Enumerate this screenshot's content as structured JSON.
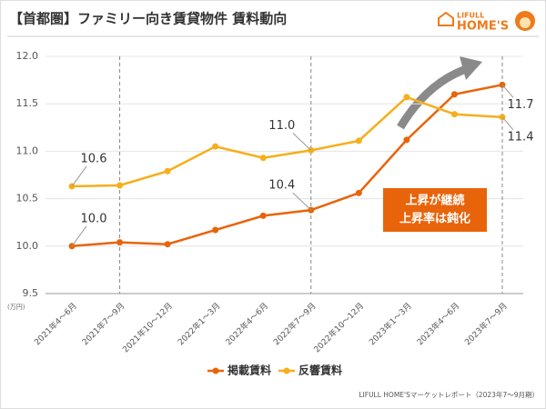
{
  "chart_data": {
    "type": "line",
    "title": "【首都圏】ファミリー向き賃貸物件 賃料動向",
    "logo_small": "LIFULL",
    "logo_large": "HOME'S",
    "y_unit": "(万円)",
    "source": "LIFULL HOME'Sマーケットレポート（2023年7〜9月期）",
    "annotation": [
      "上昇が継続",
      "上昇率は鈍化"
    ],
    "categories": [
      "2021年4〜6月",
      "2021年7〜9月",
      "2021年10〜12月",
      "2022年1〜3月",
      "2022年4〜6月",
      "2022年7〜9月",
      "2022年10〜12月",
      "2023年1〜3月",
      "2023年4〜6月",
      "2023年7〜9月"
    ],
    "series": [
      {
        "name": "掲載賃料",
        "color": "#e8640a",
        "values": [
          10.0,
          10.04,
          10.02,
          10.17,
          10.32,
          10.38,
          10.56,
          11.12,
          11.6,
          11.7
        ],
        "value_labels": [
          "10.0",
          null,
          null,
          null,
          null,
          "10.4",
          null,
          null,
          null,
          "11.7"
        ]
      },
      {
        "name": "反響賃料",
        "color": "#f7ae1a",
        "values": [
          10.63,
          10.64,
          10.79,
          11.05,
          10.93,
          11.01,
          11.11,
          11.57,
          11.39,
          11.36
        ],
        "value_labels": [
          "10.6",
          null,
          null,
          null,
          null,
          "11.0",
          null,
          null,
          null,
          "11.4"
        ]
      }
    ],
    "ylim": [
      9.5,
      12.0
    ],
    "yticks": [
      9.5,
      {
        "value": 10,
        "label": "10.0"
      },
      10.5,
      {
        "value": 11,
        "label": "11.0"
      },
      11.5,
      {
        "value": 12,
        "label": "12.0"
      }
    ],
    "reference_lines": [
      1,
      5,
      9
    ],
    "grid": true
  }
}
